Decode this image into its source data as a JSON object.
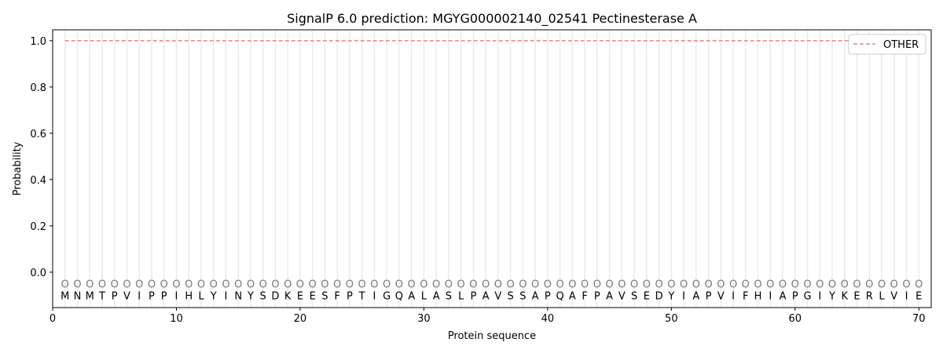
{
  "chart_data": {
    "type": "line",
    "title": "SignalP 6.0 prediction: MGYG000002140_02541 Pectinesterase A",
    "xlabel": "Protein sequence",
    "ylabel": "Probability",
    "xlim": [
      0,
      71
    ],
    "ylim": [
      -0.153,
      1.047
    ],
    "xticks": [
      0,
      10,
      20,
      30,
      40,
      50,
      60,
      70
    ],
    "yticks": [
      0.0,
      0.2,
      0.4,
      0.6,
      0.8,
      1.0
    ],
    "ytick_labels": [
      "0.0",
      "0.2",
      "0.4",
      "0.6",
      "0.8",
      "1.0"
    ],
    "grid": "vertical lines at each residue",
    "legend_placement": "top-right",
    "sequence": "MNMTPVIPPIHLYINYSDKEESFPTIGQALASLPAVSSAPQAFPAVSEDYIAPVIFHIAPGIYKERLVIE",
    "residue_marker": "O",
    "series": [
      {
        "name": "OTHER",
        "color": "#f08080",
        "style": "dashed",
        "x_start": 1,
        "x_end": 70,
        "value": 1.0
      }
    ]
  }
}
